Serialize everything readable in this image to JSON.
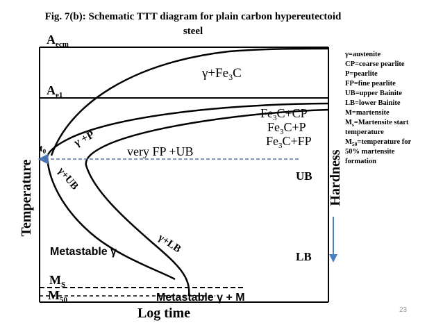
{
  "title": {
    "line1": "Fig. 7(b): Schematic TTT diagram for plain carbon hypereutectoid",
    "line2": "steel"
  },
  "axes": {
    "y_label": "Temperature",
    "x_label": "Log time",
    "right_label": "Hardness"
  },
  "markers": {
    "aecm": {
      "base": "A",
      "sub": "ecm"
    },
    "ae1": {
      "base": "A",
      "sub": "e1"
    },
    "t0": {
      "base": "t",
      "sub": "0"
    },
    "ms": {
      "base": "M",
      "sub": "S"
    },
    "m50": {
      "base": "M",
      "sub": "50"
    }
  },
  "regions": {
    "gamma_fe3c": {
      "pre": "γ+Fe",
      "sub": "3",
      "post": "C"
    },
    "fe3c_cp": {
      "pre": "Fe",
      "sub": "3",
      "post": "C+CP"
    },
    "fe3c_p": {
      "pre": "Fe",
      "sub": "3",
      "post": "C+P"
    },
    "fe3c_fp": {
      "pre": "Fe",
      "sub": "3",
      "post": "C+FP"
    },
    "gamma_p": "γ +P",
    "very_fp_ub": "very FP +UB",
    "gamma_ub": "γ+UB",
    "gamma_lb": "γ+LB",
    "metastable_gamma": "Metastable γ",
    "metastable_gamma_m": "Metastable γ + M",
    "ub": "UB",
    "lb": "LB"
  },
  "legend": {
    "l1": "γ=austenite",
    "l2": "CP=coarse pearlite",
    "l3": "P=pearlite",
    "l4": "FP=fine pearlite",
    "l5": "UB=upper Bainite",
    "l6": "LB=lower Bainite",
    "l7": "M=martensite",
    "l8": {
      "base": "M",
      "sub": "s",
      "post": "=Martensite start"
    },
    "l8b": "temperature",
    "l9": {
      "base": "M",
      "sub": "50",
      "post": "=temperature for"
    },
    "l9b": "50% martensite",
    "l9c": "formation"
  },
  "page_number": "23",
  "colors": {
    "text": "#000000",
    "dashed_line": "#4a74b0",
    "arrow": "#4a7fc1",
    "page_number": "#9a9a9a"
  }
}
